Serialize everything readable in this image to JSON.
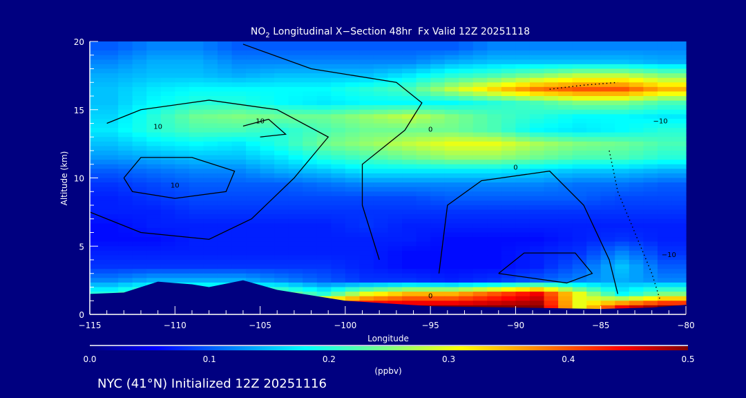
{
  "chart_data": {
    "type": "heatmap",
    "title_prefix": "NO",
    "title_subscript": "2",
    "title_suffix": " Longitudinal X−Section 48hr  Fx Valid 12Z 20251118",
    "xlabel": "Longitude",
    "ylabel": "Altitude (km)",
    "xlim": [
      -115,
      -80
    ],
    "ylim": [
      0,
      20
    ],
    "x_ticks": [
      "−115",
      "−110",
      "−105",
      "−100",
      "−95",
      "−90",
      "−85",
      "−80"
    ],
    "x_tick_values": [
      -115,
      -110,
      -105,
      -100,
      -95,
      -90,
      -85,
      -80
    ],
    "y_ticks": [
      "0",
      "5",
      "10",
      "15",
      "20"
    ],
    "y_tick_values": [
      0,
      5,
      10,
      15,
      20
    ],
    "lon_edges_step": 2.5,
    "alt_edges_step": 1,
    "values_rows_top_to_bottom": [
      [
        0.1,
        0.12,
        0.12,
        0.1,
        0.1,
        0.1,
        0.1,
        0.1,
        0.1,
        0.12,
        0.12,
        0.12,
        0.12,
        0.12
      ],
      [
        0.12,
        0.14,
        0.14,
        0.12,
        0.12,
        0.12,
        0.12,
        0.12,
        0.14,
        0.15,
        0.15,
        0.15,
        0.15,
        0.14
      ],
      [
        0.14,
        0.15,
        0.15,
        0.14,
        0.15,
        0.15,
        0.15,
        0.17,
        0.2,
        0.22,
        0.25,
        0.28,
        0.28,
        0.25
      ],
      [
        0.15,
        0.17,
        0.18,
        0.18,
        0.18,
        0.18,
        0.2,
        0.22,
        0.28,
        0.33,
        0.38,
        0.4,
        0.4,
        0.35
      ],
      [
        0.15,
        0.18,
        0.2,
        0.2,
        0.18,
        0.17,
        0.18,
        0.18,
        0.18,
        0.2,
        0.22,
        0.25,
        0.25,
        0.22
      ],
      [
        0.16,
        0.2,
        0.24,
        0.25,
        0.24,
        0.24,
        0.26,
        0.28,
        0.25,
        0.22,
        0.2,
        0.18,
        0.18,
        0.17
      ],
      [
        0.17,
        0.2,
        0.22,
        0.22,
        0.2,
        0.22,
        0.24,
        0.24,
        0.24,
        0.22,
        0.18,
        0.17,
        0.18,
        0.2
      ],
      [
        0.15,
        0.17,
        0.18,
        0.17,
        0.2,
        0.24,
        0.26,
        0.28,
        0.3,
        0.3,
        0.27,
        0.25,
        0.24,
        0.22
      ],
      [
        0.13,
        0.14,
        0.15,
        0.15,
        0.17,
        0.2,
        0.22,
        0.24,
        0.26,
        0.26,
        0.24,
        0.22,
        0.22,
        0.2
      ],
      [
        0.1,
        0.11,
        0.12,
        0.12,
        0.14,
        0.15,
        0.17,
        0.17,
        0.17,
        0.17,
        0.16,
        0.15,
        0.15,
        0.14
      ],
      [
        0.08,
        0.09,
        0.1,
        0.1,
        0.1,
        0.11,
        0.12,
        0.12,
        0.12,
        0.12,
        0.12,
        0.11,
        0.11,
        0.1
      ],
      [
        0.07,
        0.08,
        0.09,
        0.09,
        0.09,
        0.09,
        0.09,
        0.09,
        0.1,
        0.1,
        0.1,
        0.1,
        0.09,
        0.09
      ],
      [
        0.07,
        0.07,
        0.08,
        0.08,
        0.08,
        0.08,
        0.08,
        0.08,
        0.08,
        0.08,
        0.08,
        0.08,
        0.08,
        0.08
      ],
      [
        0.06,
        0.07,
        0.07,
        0.07,
        0.07,
        0.07,
        0.08,
        0.07,
        0.07,
        0.07,
        0.07,
        0.07,
        0.07,
        0.07
      ],
      [
        0.06,
        0.06,
        0.07,
        0.07,
        0.07,
        0.07,
        0.07,
        0.07,
        0.06,
        0.06,
        0.06,
        0.07,
        0.08,
        0.07
      ],
      [
        0.07,
        0.07,
        0.07,
        0.07,
        0.07,
        0.07,
        0.07,
        0.06,
        0.06,
        0.06,
        0.07,
        0.08,
        0.12,
        0.08
      ],
      [
        0.08,
        0.08,
        0.08,
        0.08,
        0.08,
        0.08,
        0.07,
        0.06,
        0.06,
        0.06,
        0.07,
        0.1,
        0.15,
        0.1
      ],
      [
        0.12,
        0.14,
        0.14,
        0.14,
        0.12,
        0.1,
        0.08,
        0.08,
        0.07,
        0.08,
        0.1,
        0.12,
        0.14,
        0.12
      ],
      [
        0.2,
        0.25,
        0.25,
        0.25,
        0.25,
        0.2,
        0.3,
        0.35,
        0.35,
        0.4,
        0.45,
        0.3,
        0.18,
        0.25
      ],
      [
        0.3,
        0.3,
        0.3,
        0.3,
        0.45,
        0.5,
        0.5,
        0.5,
        0.5,
        0.5,
        0.5,
        0.3,
        0.45,
        0.5
      ]
    ],
    "terrain_lon": [
      -115,
      -113,
      -111,
      -109,
      -108,
      -106,
      -104,
      -102,
      -100,
      -95,
      -90,
      -85,
      -82,
      -80
    ],
    "terrain_alt_km": [
      1.5,
      1.6,
      2.4,
      2.2,
      2.0,
      2.5,
      1.8,
      1.4,
      1.0,
      0.6,
      0.5,
      0.4,
      0.5,
      0.7
    ],
    "contours": [
      {
        "label": "10",
        "style": "solid",
        "points": [
          [
            -113,
            10
          ],
          [
            -112,
            11.5
          ],
          [
            -109,
            11.5
          ],
          [
            -106.5,
            10.5
          ],
          [
            -107,
            9
          ],
          [
            -110,
            8.5
          ],
          [
            -112.5,
            9
          ],
          [
            -113,
            10
          ]
        ],
        "label_at": [
          -110,
          9.3
        ]
      },
      {
        "label": "10",
        "style": "solid",
        "points": [
          [
            -114,
            14
          ],
          [
            -112,
            15
          ],
          [
            -108,
            15.7
          ],
          [
            -104,
            15
          ],
          [
            -101,
            13
          ],
          [
            -103,
            10
          ],
          [
            -105.5,
            7
          ],
          [
            -108,
            5.5
          ],
          [
            -112,
            6
          ],
          [
            -115,
            7.5
          ]
        ],
        "label_at": [
          -111,
          13.6
        ]
      },
      {
        "label": "10",
        "style": "solid",
        "points": [
          [
            -106,
            13.8
          ],
          [
            -104.5,
            14.3
          ],
          [
            -103.5,
            13.2
          ],
          [
            -105,
            13
          ]
        ],
        "label_at": [
          -105,
          14
        ]
      },
      {
        "label": "0",
        "style": "solid",
        "points": [
          [
            -94.5,
            3
          ],
          [
            -94,
            8
          ],
          [
            -92,
            9.8
          ],
          [
            -88,
            10.5
          ],
          [
            -86,
            8
          ],
          [
            -84.5,
            4
          ],
          [
            -84,
            1.5
          ]
        ],
        "label_at": [
          -90,
          10.6
        ]
      },
      {
        "label": "0",
        "style": "solid",
        "points": [
          [
            -98,
            4
          ],
          [
            -99,
            8
          ],
          [
            -99,
            11
          ],
          [
            -96.5,
            13.5
          ],
          [
            -95.5,
            15.5
          ],
          [
            -97,
            17
          ],
          [
            -102,
            18
          ],
          [
            -106,
            19.8
          ]
        ],
        "label_at": [
          -95,
          13.4
        ]
      },
      {
        "label": "0",
        "style": "solid",
        "points": [
          [
            -91,
            3
          ],
          [
            -89.5,
            4.5
          ],
          [
            -86.5,
            4.5
          ],
          [
            -85.5,
            3
          ],
          [
            -87,
            2.3
          ],
          [
            -91,
            3
          ]
        ],
        "label_at": [
          -95,
          1.2
        ]
      },
      {
        "label": "−10",
        "style": "dotted",
        "points": [
          [
            -88,
            16.5
          ],
          [
            -86,
            16.8
          ],
          [
            -84,
            17
          ]
        ],
        "label_at": [
          -81.5,
          14
        ]
      },
      {
        "label": "−10",
        "style": "dotted",
        "points": [
          [
            -84.5,
            12
          ],
          [
            -84,
            9
          ],
          [
            -83,
            6
          ],
          [
            -82,
            3
          ],
          [
            -81.5,
            1
          ]
        ],
        "label_at": [
          -81,
          4.2
        ]
      }
    ],
    "colorbar": {
      "min": 0.0,
      "max": 0.5,
      "ticks": [
        "0.0",
        "0.1",
        "0.2",
        "0.3",
        "0.4",
        "0.5"
      ],
      "unit_label": "(ppbv)",
      "colormap": "jet"
    },
    "subtitle": "NYC (41°N) Initialized 12Z 20251116"
  },
  "colors": {
    "background": "#000080",
    "terrain": "#000080",
    "contour": "#000000",
    "axis": "#ffffff"
  }
}
